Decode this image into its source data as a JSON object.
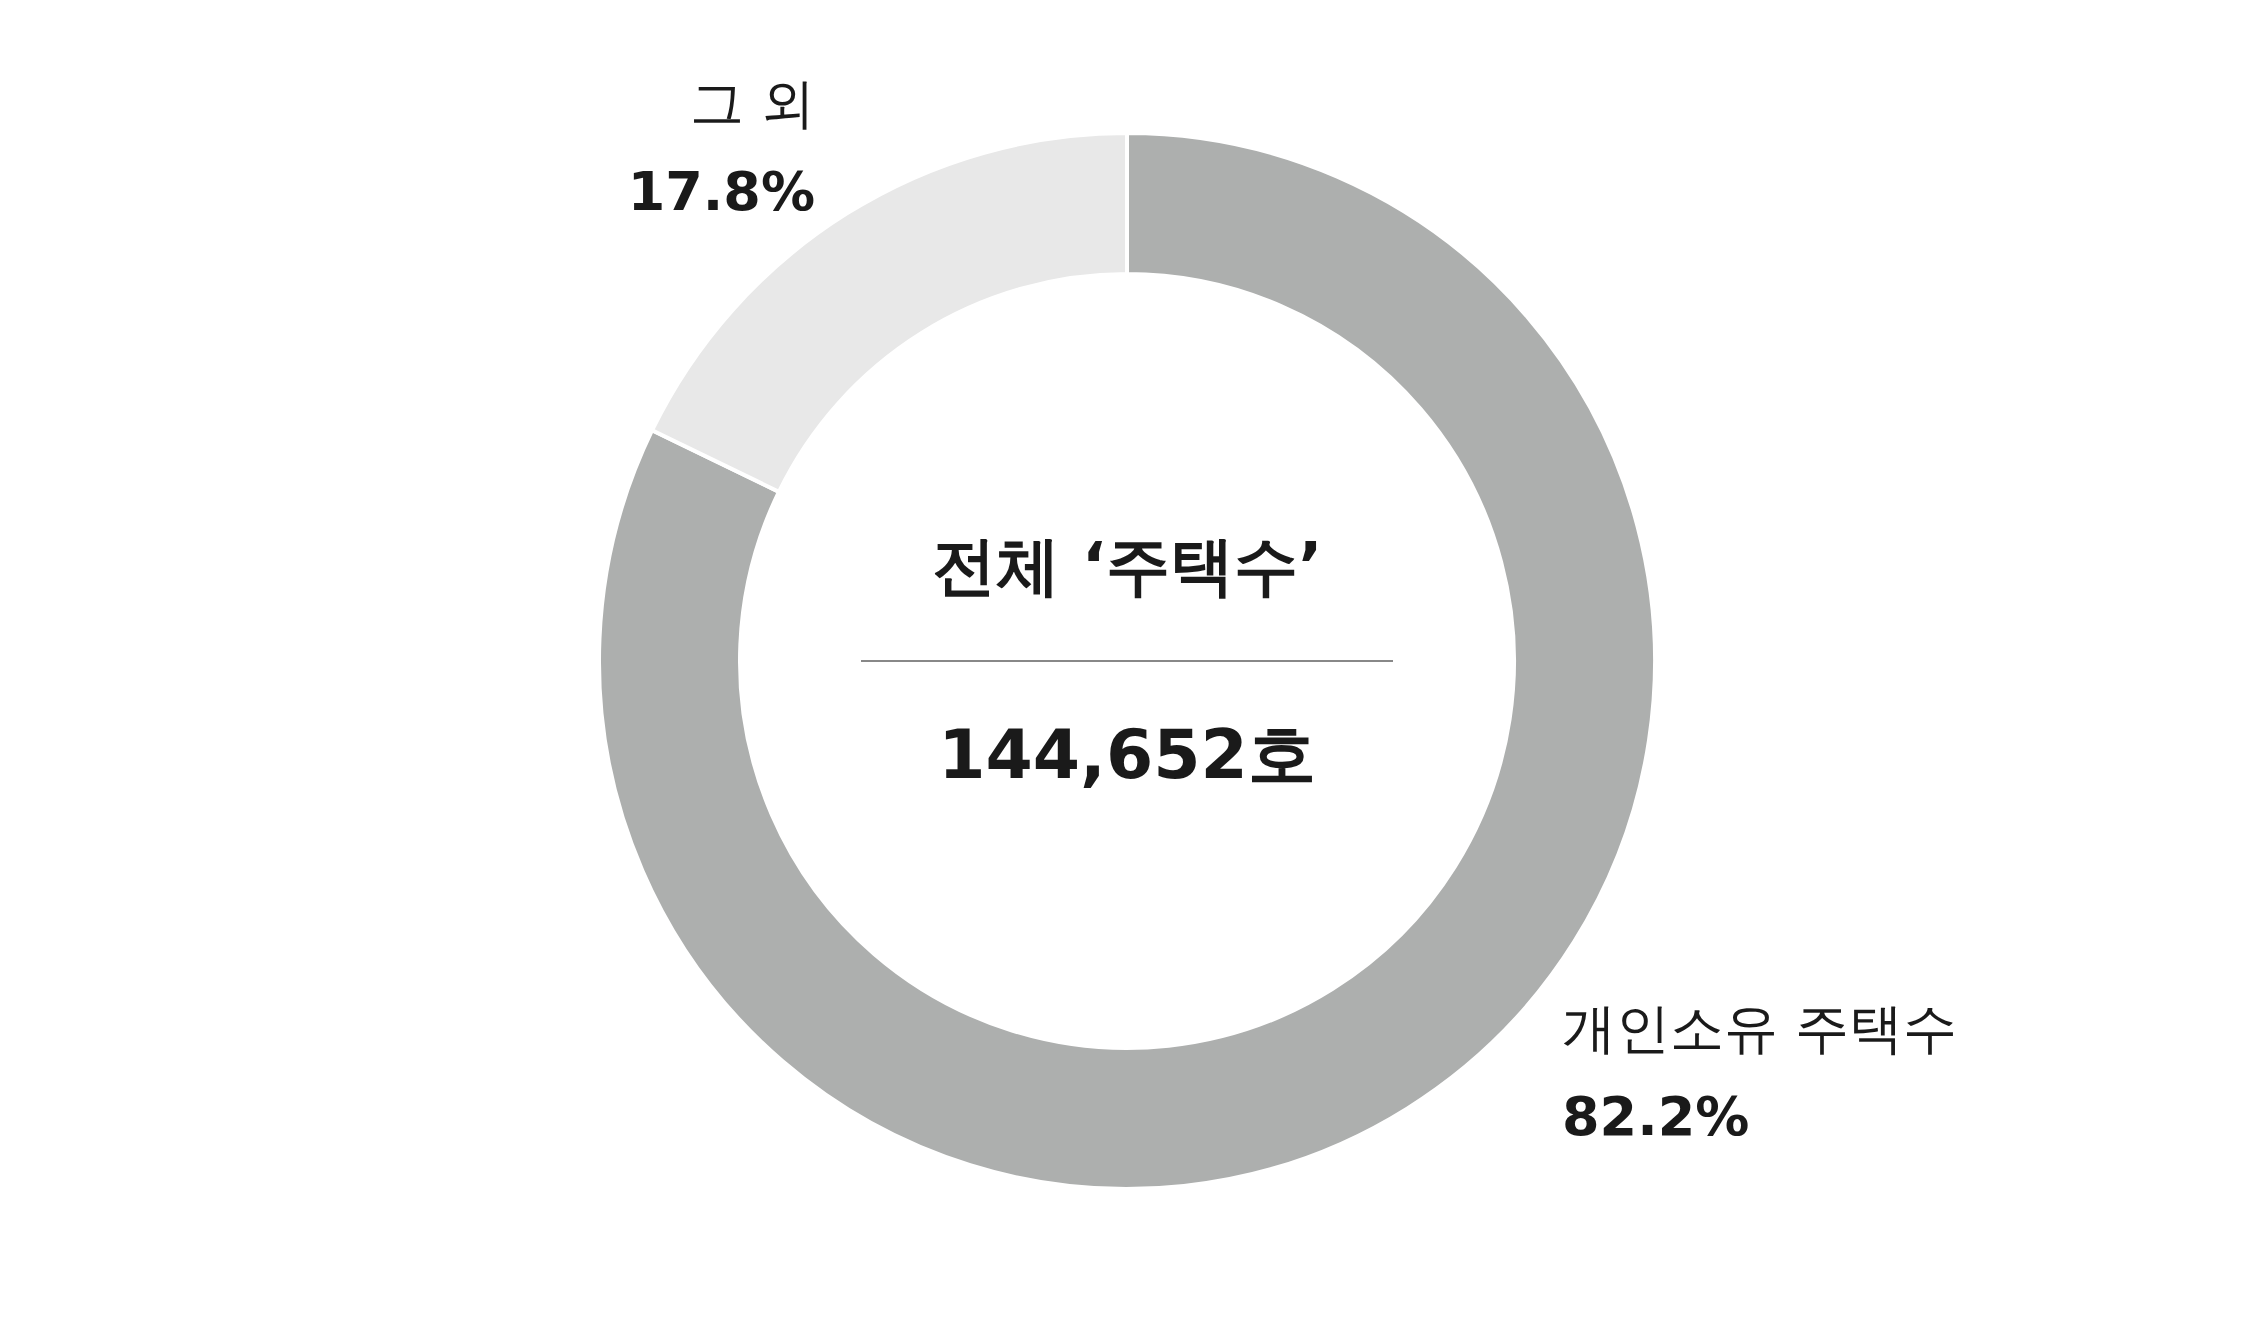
{
  "chart_data": {
    "type": "donut",
    "title": "전체 ‘주택수’",
    "subtitle": "144,652호",
    "categories": [
      "개인소유 주택수",
      "그 외"
    ],
    "values": [
      82.2,
      17.8
    ],
    "colors": [
      "#adafae",
      "#e8e8e8"
    ],
    "value_labels": [
      "82.2%",
      "17.8%"
    ]
  }
}
